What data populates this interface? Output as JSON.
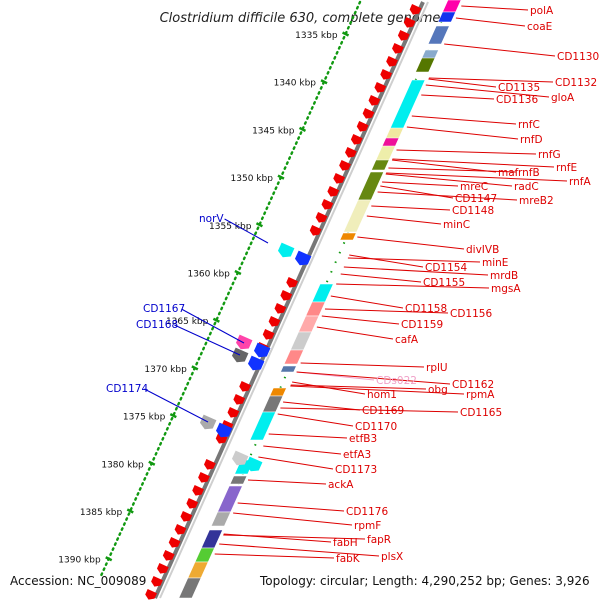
{
  "title": "Clostridium difficile 630, complete genome",
  "accession": "Accession: NC_009089",
  "topology": "Topology: circular; Length: 4,290,252 bp; Genes: 3,926",
  "colors": {
    "right_label": "#dd0000",
    "left_label": "#0000cc",
    "faded_label": "#f0a0c8",
    "scale_dots": "#119911",
    "backbone": "#888888"
  },
  "scale": [
    "1335 kbp",
    "1340 kbp",
    "1345 kbp",
    "1350 kbp",
    "1355 kbp",
    "1360 kbp",
    "1365 kbp",
    "1370 kbp",
    "1375 kbp",
    "1380 kbp",
    "1385 kbp",
    "1390 kbp"
  ],
  "right_genes": [
    "polA",
    "coaE",
    "CD1130",
    "CD1132",
    "CD1135",
    "gloA",
    "CD1136",
    "rnfC",
    "rnfD",
    "rnfG",
    "rnfE",
    "maf",
    "rnfB",
    "rnfA",
    "radC",
    "mreC",
    "mreB2",
    "CD1147",
    "CD1148",
    "minC",
    "divIVB",
    "minE",
    "mrdB",
    "CD1154",
    "mgsA",
    "CD1155",
    "CD1158",
    "CD1156",
    "CD1159",
    "cafA",
    "rplU",
    "CDs022",
    "CD1162",
    "obg",
    "rpmA",
    "hom1",
    "CD1165",
    "CD1169",
    "CD1170",
    "etfB3",
    "etfA3",
    "CD1173",
    "ackA",
    "CD1176",
    "rpmF",
    "fapR",
    "fabH",
    "plsX",
    "fabK"
  ],
  "left_genes": [
    "norV",
    "CD1167",
    "CD1168",
    "CD1174"
  ]
}
